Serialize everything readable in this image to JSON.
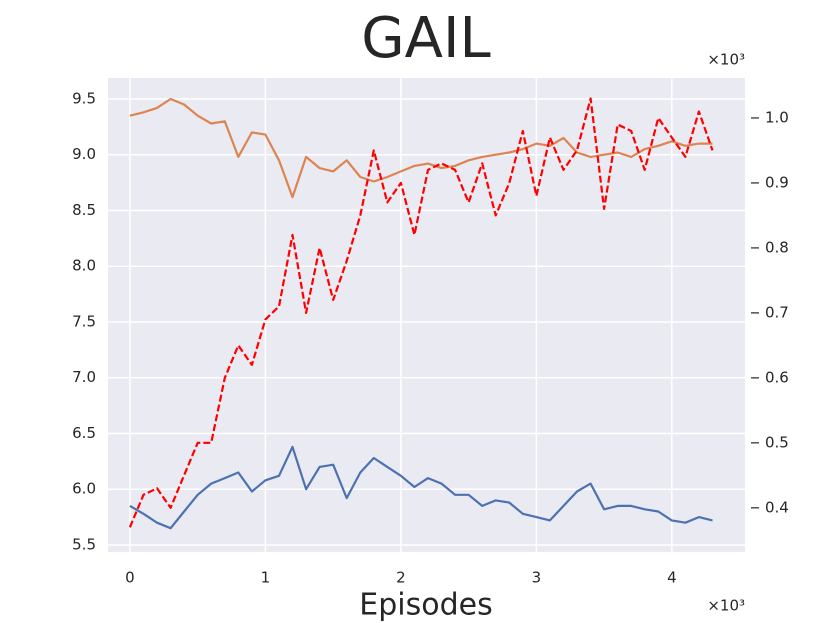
{
  "chart_data": {
    "type": "line",
    "title": "GAIL",
    "xlabel": "Episodes",
    "x_offset_label": "×10³",
    "y2_offset_label": "×10³",
    "x": [
      0,
      0.1,
      0.2,
      0.3,
      0.4,
      0.5,
      0.6,
      0.7,
      0.8,
      0.9,
      1.0,
      1.1,
      1.2,
      1.3,
      1.4,
      1.5,
      1.6,
      1.7,
      1.8,
      1.9,
      2.0,
      2.1,
      2.2,
      2.3,
      2.4,
      2.5,
      2.6,
      2.7,
      2.8,
      2.9,
      3.0,
      3.1,
      3.2,
      3.3,
      3.4,
      3.5,
      3.6,
      3.7,
      3.8,
      3.9,
      4.0,
      4.1,
      4.2,
      4.3
    ],
    "series": [
      {
        "color": "#4c72b0",
        "dash": false,
        "axis": "y",
        "values": [
          5.85,
          5.78,
          5.7,
          5.65,
          5.8,
          5.95,
          6.05,
          6.1,
          6.15,
          5.98,
          6.08,
          6.12,
          6.38,
          6.0,
          6.2,
          6.22,
          5.92,
          6.15,
          6.28,
          6.2,
          6.12,
          6.02,
          6.1,
          6.05,
          5.95,
          5.95,
          5.85,
          5.9,
          5.88,
          5.78,
          5.75,
          5.72,
          5.85,
          5.98,
          6.05,
          5.82,
          5.85,
          5.85,
          5.82,
          5.8,
          5.72,
          5.7,
          5.75,
          5.72
        ]
      },
      {
        "color": "#dd8452",
        "dash": false,
        "axis": "y",
        "values": [
          9.35,
          9.38,
          9.42,
          9.5,
          9.45,
          9.35,
          9.28,
          9.3,
          8.98,
          9.2,
          9.18,
          8.95,
          8.62,
          8.98,
          8.88,
          8.85,
          8.95,
          8.8,
          8.76,
          8.8,
          8.85,
          8.9,
          8.92,
          8.88,
          8.9,
          8.95,
          8.98,
          9.0,
          9.02,
          9.05,
          9.1,
          9.08,
          9.15,
          9.02,
          8.98,
          9.0,
          9.02,
          8.98,
          9.05,
          9.08,
          9.12,
          9.08,
          9.1,
          9.1
        ]
      },
      {
        "color": "#ff0000",
        "dash": true,
        "axis": "y2",
        "values": [
          0.37,
          0.42,
          0.43,
          0.4,
          0.45,
          0.5,
          0.5,
          0.6,
          0.65,
          0.62,
          0.69,
          0.71,
          0.82,
          0.7,
          0.8,
          0.72,
          0.78,
          0.85,
          0.95,
          0.87,
          0.9,
          0.82,
          0.92,
          0.93,
          0.92,
          0.87,
          0.93,
          0.85,
          0.9,
          0.98,
          0.88,
          0.97,
          0.92,
          0.95,
          1.03,
          0.86,
          0.99,
          0.98,
          0.92,
          1.0,
          0.97,
          0.94,
          1.01,
          0.95
        ]
      }
    ],
    "xlim": [
      -0.162,
      4.54
    ],
    "xticks": [
      0,
      1,
      2,
      3,
      4
    ],
    "ylim": [
      5.437,
      9.688
    ],
    "yticks": [
      5.5,
      {
        "value": 6,
        "label": "6.0"
      },
      6.5,
      {
        "value": 7,
        "label": "7.0"
      },
      7.5,
      {
        "value": 8,
        "label": "8.0"
      },
      8.5,
      {
        "value": 9,
        "label": "9.0"
      },
      9.5
    ],
    "y2lim": [
      0.332,
      1.0615
    ],
    "y2ticks": [
      0.4,
      0.5,
      0.6,
      0.7,
      0.8,
      0.9,
      {
        "value": 1,
        "label": "1.0"
      }
    ],
    "grid": true,
    "background": "#eaeaf2"
  }
}
